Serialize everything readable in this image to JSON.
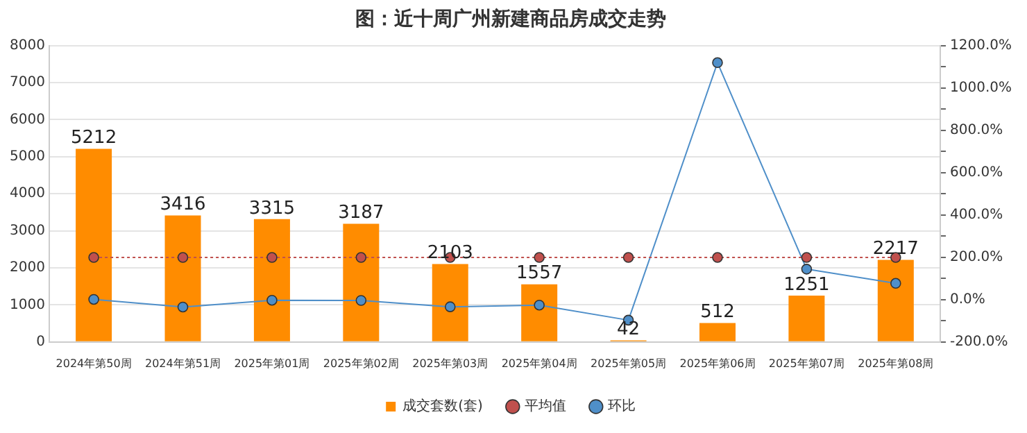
{
  "chart_data": {
    "type": "bar",
    "title": "图：近十周广州新建商品房成交走势",
    "categories": [
      "2024年第50周",
      "2024年第51周",
      "2025年第01周",
      "2025年第02周",
      "2025年第03周",
      "2025年第04周",
      "2025年第05周",
      "2025年第06周",
      "2025年第07周",
      "2025年第08周"
    ],
    "series": [
      {
        "name": "成交套数(套)",
        "color": "#ff8c00",
        "values": [
          5212,
          3416,
          3315,
          3187,
          2103,
          1557,
          42,
          512,
          1251,
          2217
        ],
        "value_labels": [
          "5212",
          "3416",
          "3315",
          "3187",
          "2103",
          "1557",
          "42",
          "512",
          "1251",
          "2217"
        ]
      },
      {
        "name": "平均值",
        "type": "line",
        "color": "#c0504d",
        "line_style": "dotted",
        "values": [
          2280,
          2280,
          2280,
          2280,
          2280,
          2280,
          2280,
          2280,
          2280,
          2280
        ]
      },
      {
        "name": "环比",
        "type": "line",
        "color": "#4f8fc9",
        "axis": "y2",
        "line_style": "solid",
        "values": [
          1,
          -35,
          -3,
          -4,
          -34,
          -26,
          -97,
          1119,
          144,
          77
        ]
      }
    ],
    "ylim": [
      0,
      8000
    ],
    "yticks": [
      0,
      1000,
      2000,
      3000,
      4000,
      5000,
      6000,
      7000,
      8000
    ],
    "y2lim": [
      -200,
      1200
    ],
    "y2ticks": [
      {
        "value": -200,
        "label": "-200.0%"
      },
      {
        "value": -100,
        "label": null
      },
      {
        "value": 0,
        "label": "0.0%"
      },
      {
        "value": 100,
        "label": null
      },
      {
        "value": 200,
        "label": "200.0%"
      },
      {
        "value": 300,
        "label": null
      },
      {
        "value": 400,
        "label": "400.0%"
      },
      {
        "value": 500,
        "label": null
      },
      {
        "value": 600,
        "label": "600.0%"
      },
      {
        "value": 700,
        "label": null
      },
      {
        "value": 800,
        "label": "800.0%"
      },
      {
        "value": 900,
        "label": null
      },
      {
        "value": 1000,
        "label": "1000.0%"
      },
      {
        "value": 1100,
        "label": null
      },
      {
        "value": 1200,
        "label": "1200.0%"
      }
    ],
    "grid": "y",
    "legend": "bottom",
    "marker": "circle"
  }
}
